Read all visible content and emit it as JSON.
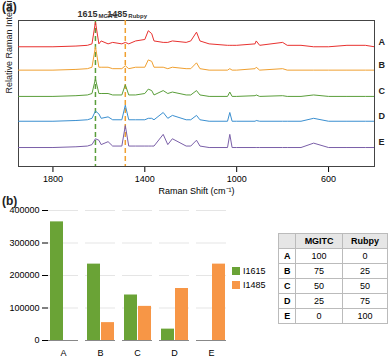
{
  "chart_data": [
    {
      "type": "line",
      "x_label": "Raman Shift (cm⁻¹)",
      "y_label": "Relative Raman Intensity",
      "x": [
        1950,
        1800,
        1700,
        1650,
        1630,
        1615,
        1600,
        1590,
        1560,
        1540,
        1500,
        1485,
        1470,
        1440,
        1400,
        1385,
        1370,
        1360,
        1320,
        1300,
        1280,
        1220,
        1200,
        1175,
        1160,
        1120,
        1040,
        1030,
        1020,
        1000,
        920,
        915,
        900,
        800,
        780,
        720,
        665,
        600,
        520,
        440,
        400
      ],
      "xlim": [
        1950,
        400
      ],
      "xticks": [
        1800,
        1400,
        1000,
        600
      ],
      "ylim": [
        0,
        100
      ],
      "tick_labels": "x",
      "grid": false,
      "series": [
        {
          "name": "A",
          "color": "#e8312f",
          "values": [
            82,
            82,
            82.5,
            83,
            84,
            99,
            84,
            86,
            84,
            85,
            84,
            85,
            84,
            86,
            87,
            93,
            91,
            86,
            85,
            85,
            86,
            85,
            86,
            92,
            86,
            84,
            83,
            83,
            83,
            83,
            84,
            86,
            83,
            85,
            83,
            83,
            82,
            82,
            83,
            83,
            82
          ]
        },
        {
          "name": "B",
          "color": "#f0a030",
          "values": [
            66,
            66,
            66.5,
            67,
            68,
            82,
            68,
            68,
            68,
            67,
            67,
            69,
            67,
            68,
            68,
            73,
            72,
            68,
            68,
            67,
            68,
            67,
            67,
            71,
            67,
            66,
            66,
            67,
            66,
            66,
            67,
            68,
            66,
            67,
            66,
            66,
            66,
            66,
            66,
            66,
            66
          ]
        },
        {
          "name": "C",
          "color": "#5a9e3a",
          "values": [
            48,
            48,
            48.5,
            49,
            50,
            60,
            50,
            50,
            50,
            49,
            49,
            56,
            49,
            49,
            50,
            53,
            52,
            49,
            52,
            50,
            51,
            49,
            49,
            52,
            49,
            48,
            48,
            51,
            48,
            48,
            48.5,
            49,
            48,
            48.5,
            48,
            48,
            49,
            48,
            48,
            48,
            48
          ]
        },
        {
          "name": "D",
          "color": "#3a8fd0",
          "values": [
            31,
            31,
            31.5,
            32,
            33,
            38,
            36,
            33,
            34,
            32,
            32,
            42,
            32,
            32,
            32,
            33,
            33,
            32,
            37,
            33,
            35,
            32,
            32,
            35,
            32,
            31,
            31,
            37,
            31,
            31,
            31,
            31.5,
            31,
            31,
            31,
            31,
            33,
            31,
            31,
            31,
            31
          ]
        },
        {
          "name": "E",
          "color": "#7a5fa8",
          "values": [
            13,
            13,
            13.5,
            14,
            15,
            19,
            18,
            15,
            17,
            14,
            14,
            28,
            14,
            14,
            14,
            14,
            14,
            14,
            22,
            15,
            19,
            14,
            14,
            18,
            14,
            13,
            13,
            22,
            13,
            13,
            13,
            13,
            13,
            13,
            13,
            13,
            16,
            13,
            13,
            13,
            13
          ]
        }
      ],
      "annotations": [
        {
          "x": 1615,
          "text": "1615",
          "subscript": "MGITC",
          "color": "#5a9e3a",
          "line_style": "dashed"
        },
        {
          "x": 1485,
          "text": "1485",
          "subscript": "Rubpy",
          "color": "#f0a030",
          "line_style": "dashed"
        }
      ]
    },
    {
      "type": "bar",
      "categories": [
        "A",
        "B",
        "C",
        "D",
        "E"
      ],
      "series": [
        {
          "name": "I1615",
          "color": "#6aa336",
          "values": [
            365000,
            235000,
            140000,
            35000,
            0
          ]
        },
        {
          "name": "I1485",
          "color": "#f79646",
          "values": [
            0,
            55000,
            105000,
            160000,
            235000
          ]
        }
      ],
      "ylim": [
        0,
        400000
      ],
      "yticks": [
        0,
        100000,
        200000,
        300000,
        400000
      ],
      "grid": true,
      "legend": "right"
    }
  ],
  "panel_labels": [
    "(a)",
    "(b)"
  ],
  "table": {
    "header": [
      "MGITC",
      "Rubpy"
    ],
    "rows": [
      {
        "label": "A",
        "values": [
          100,
          0
        ]
      },
      {
        "label": "B",
        "values": [
          75,
          25
        ]
      },
      {
        "label": "C",
        "values": [
          50,
          50
        ]
      },
      {
        "label": "D",
        "values": [
          25,
          75
        ]
      },
      {
        "label": "E",
        "values": [
          0,
          100
        ]
      }
    ]
  }
}
